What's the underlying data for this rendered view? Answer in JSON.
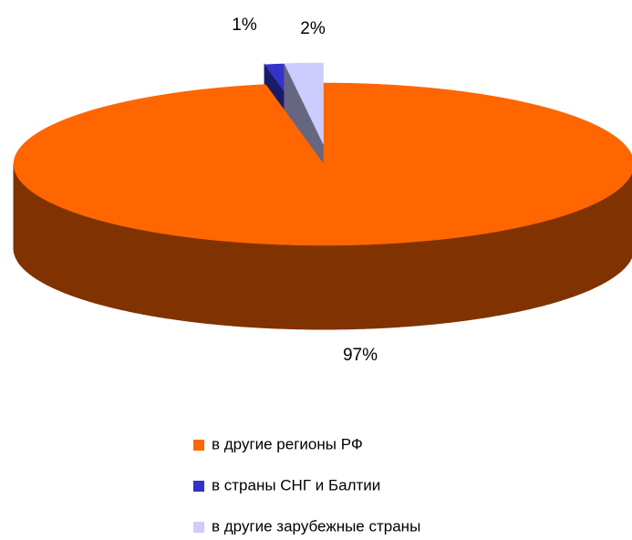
{
  "chart_data": {
    "type": "pie3d",
    "categories": [
      "в другие регионы РФ",
      "в страны СНГ и Балтии",
      "в другие зарубежные страны"
    ],
    "values": [
      97,
      1,
      2
    ],
    "value_labels": [
      "97%",
      "1%",
      "2%"
    ],
    "colors": [
      "#ff6600",
      "#3333cc",
      "#ccccff"
    ],
    "legend": "bottom"
  }
}
